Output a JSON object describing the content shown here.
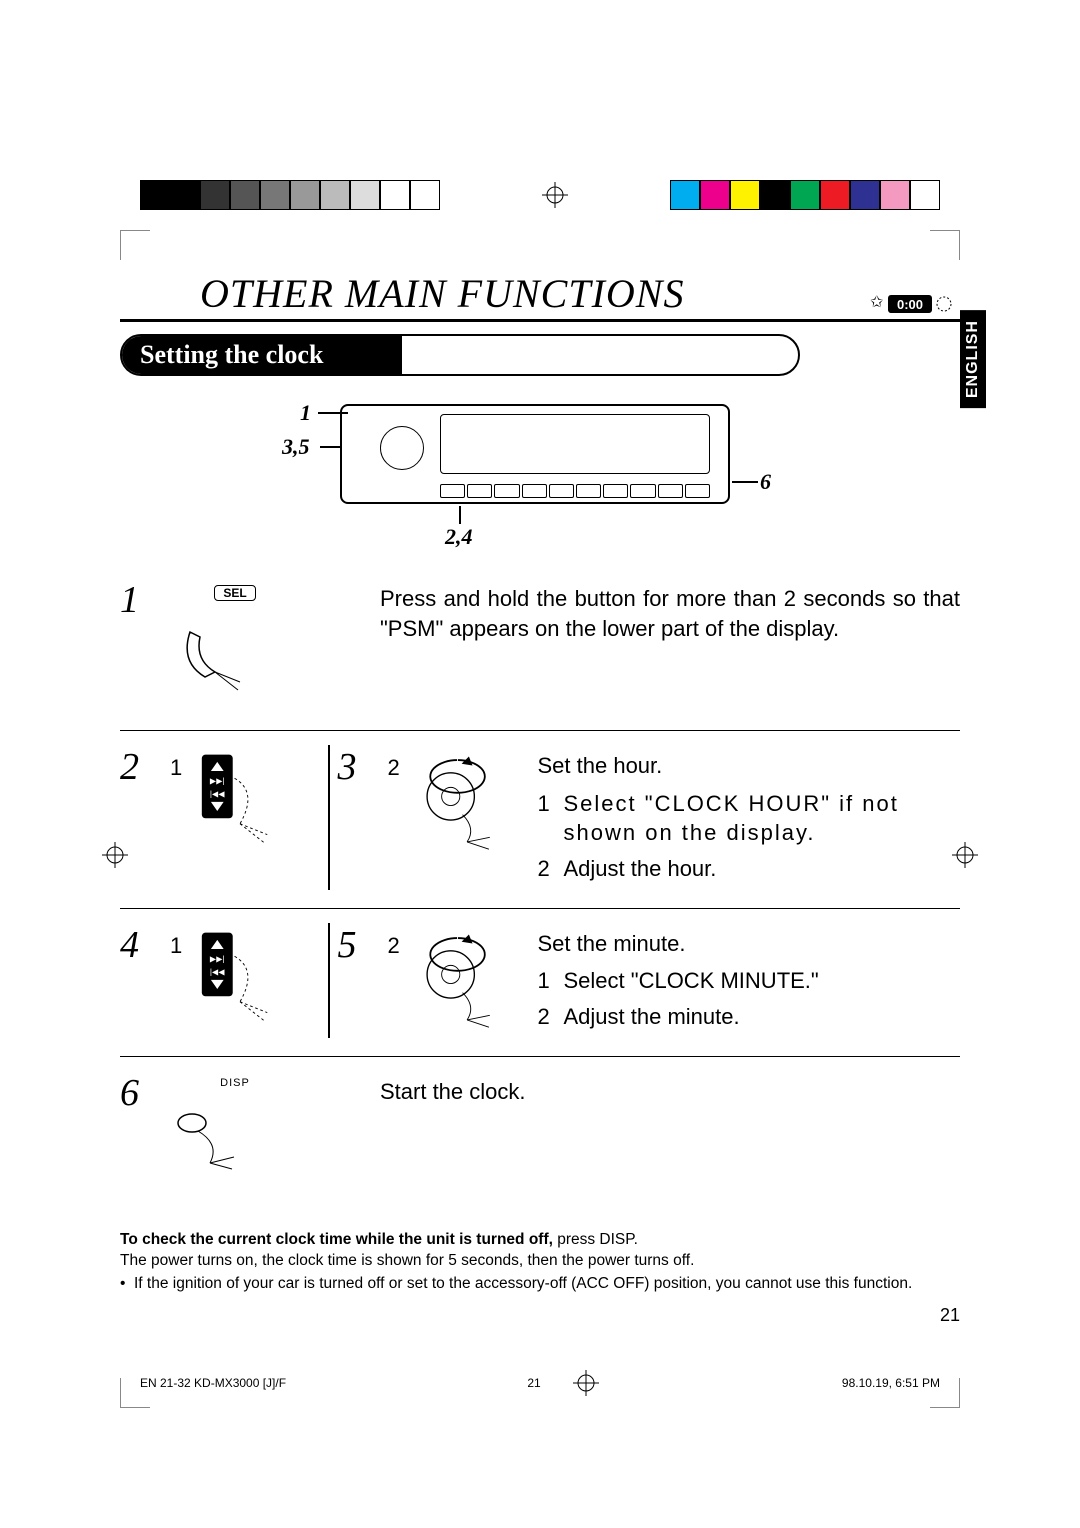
{
  "colorbar": {
    "left_swatches": [
      "#000000",
      "#000000",
      "#333333",
      "#555555",
      "#777777",
      "#999999",
      "#bbbbbb",
      "#dddddd",
      "#ffffff",
      "#ffffff"
    ],
    "right_swatches": [
      "#00aeef",
      "#ec008c",
      "#fff200",
      "#000000",
      "#00a651",
      "#ed1c24",
      "#2e3192",
      "#f49ac1",
      "#ffffff"
    ],
    "border": "#000000"
  },
  "title": "OTHER MAIN FUNCTIONS",
  "clock_badge": "0:00",
  "section_title": "Setting the clock",
  "language_tab": "ENGLISH",
  "diagram_callouts": {
    "c1": "1",
    "c35": "3,5",
    "c24": "2,4",
    "c6": "6"
  },
  "steps": {
    "s1": {
      "num": "1",
      "button_label": "SEL",
      "text": "Press and hold the button for more than 2 seconds so that \"PSM\" appears on the lower part of the display."
    },
    "s23": {
      "numA": "2",
      "subA": "1",
      "numB": "3",
      "subB": "2",
      "lead": "Set the hour.",
      "item1": "Select \"CLOCK HOUR\" if not shown on the display.",
      "item2": "Adjust the hour."
    },
    "s45": {
      "numA": "4",
      "subA": "1",
      "numB": "5",
      "subB": "2",
      "lead": "Set the minute.",
      "item1": "Select \"CLOCK MINUTE.\"",
      "item2": "Adjust the minute."
    },
    "s6": {
      "num": "6",
      "label": "DISP",
      "text": "Start the clock."
    }
  },
  "footnote": {
    "bold": "To check the current clock time while the unit is turned off,",
    "bold_tail": " press DISP.",
    "line2": "The power turns on, the clock time is shown for 5 seconds, then the power turns off.",
    "bullet": "If the ignition of your car is turned off or set to the accessory-off (ACC OFF) position, you cannot use this function."
  },
  "page_number": "21",
  "footer": {
    "left": "EN 21-32 KD-MX3000 [J]/F",
    "mid": "21",
    "right": "98.10.19, 6:51 PM"
  }
}
